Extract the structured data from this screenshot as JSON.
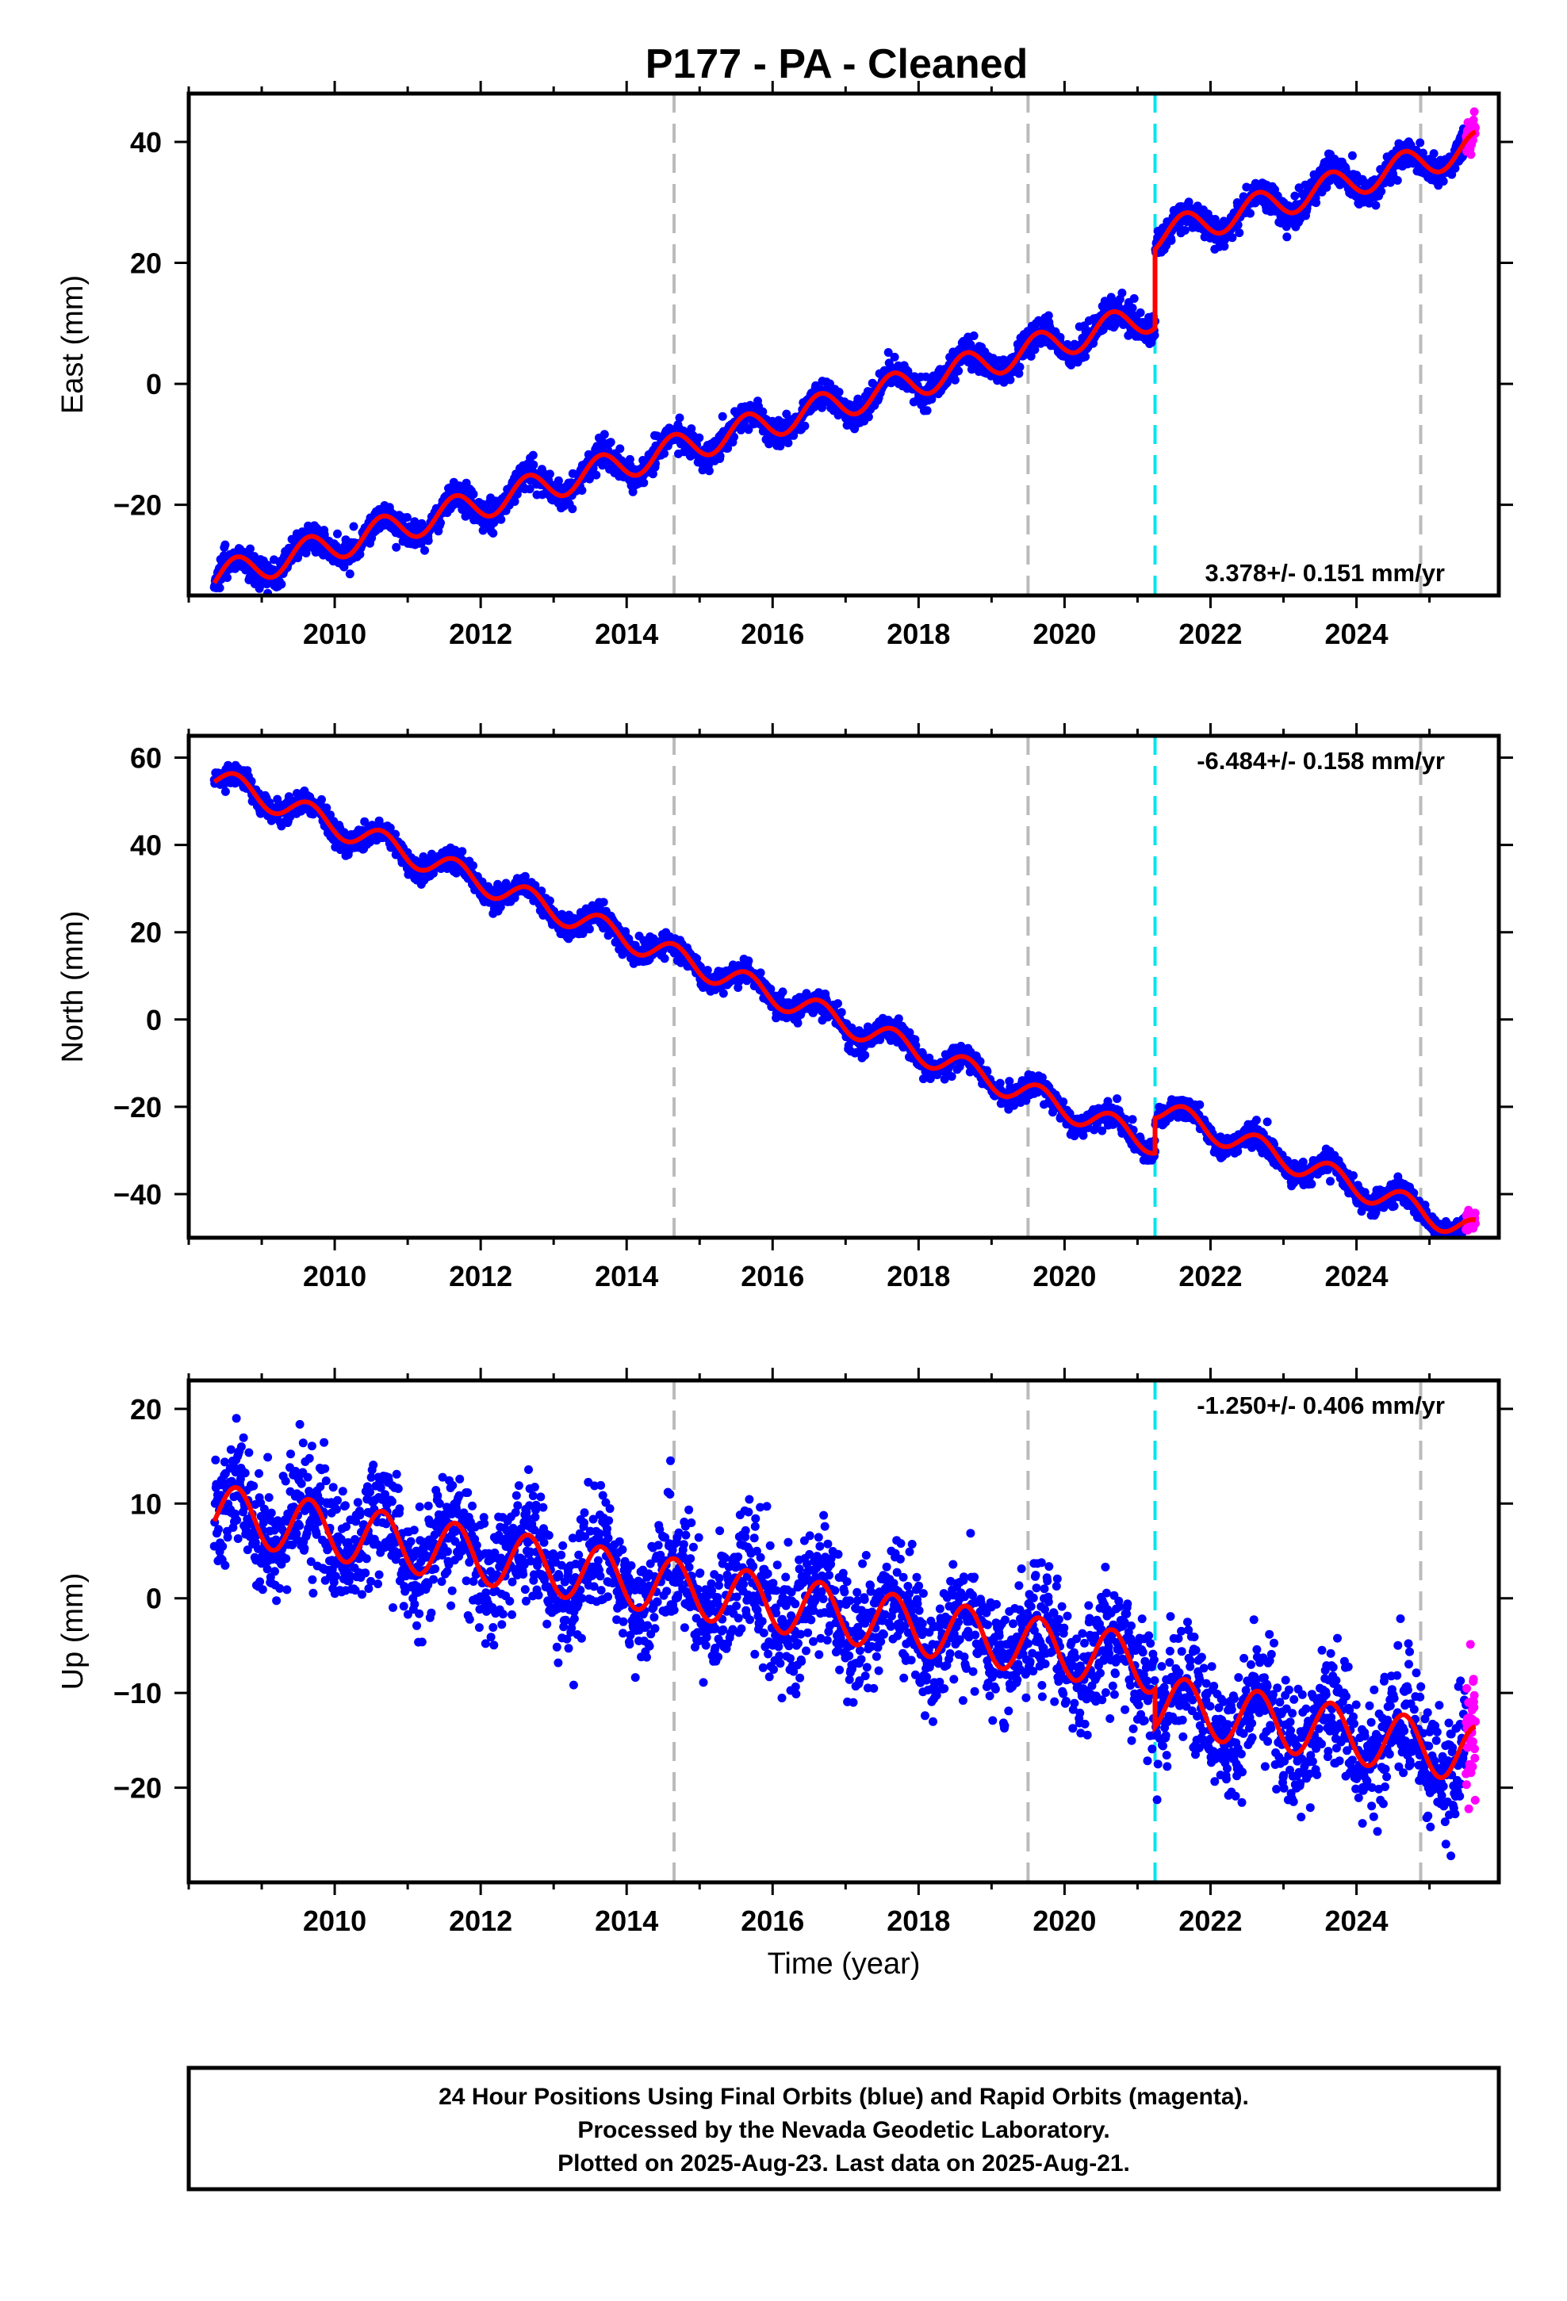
{
  "title": "P177  - PA - Cleaned",
  "footer": {
    "line1": "24 Hour Positions Using Final Orbits (blue) and Rapid Orbits (magenta).",
    "line2": "Processed by the Nevada Geodetic Laboratory.",
    "line3": "Plotted on 2025-Aug-23. Last data on 2025-Aug-21."
  },
  "colors": {
    "final_orbits": "#0000ff",
    "rapid_orbits": "#ff00ff",
    "model_fit": "#ff0000",
    "equipment_change": "#bbbbbb",
    "earthquake": "#00e5ee"
  },
  "chart_data": [
    {
      "type": "scatter",
      "component": "east",
      "ylabel": "East (mm)",
      "xlabel": "",
      "xlim": [
        2008.0,
        2025.95
      ],
      "ylim": [
        -35,
        48
      ],
      "x_ticks": [
        2010,
        2012,
        2014,
        2016,
        2018,
        2020,
        2022,
        2024
      ],
      "y_ticks": [
        -20,
        0,
        20,
        40
      ],
      "rate_label": "3.378+/- 0.151 mm/yr",
      "rate_position": "bottom-right",
      "vertical_lines": [
        {
          "x": 2014.65,
          "kind": "equipment-change",
          "style": "gray-dashed"
        },
        {
          "x": 2019.5,
          "kind": "equipment-change",
          "style": "gray-dashed"
        },
        {
          "x": 2021.24,
          "kind": "earthquake",
          "style": "cyan-dashed"
        },
        {
          "x": 2024.88,
          "kind": "equipment-change",
          "style": "gray-dashed"
        }
      ],
      "model": {
        "t0": 2008.4,
        "v0": -32.0,
        "rate": 3.378,
        "seasonal_amplitude": 2.5,
        "offsets": [
          {
            "x": 2021.24,
            "step": 13.0
          }
        ]
      },
      "series": [
        {
          "orbit": "final",
          "x_range": [
            2008.35,
            2025.5
          ],
          "noise_mm": 1.2,
          "points": 3000
        },
        {
          "orbit": "rapid",
          "x_range": [
            2025.5,
            2025.63
          ],
          "noise_mm": 1.5,
          "points": 35
        }
      ]
    },
    {
      "type": "scatter",
      "component": "north",
      "ylabel": "North (mm)",
      "xlabel": "",
      "xlim": [
        2008.0,
        2025.95
      ],
      "ylim": [
        -50,
        65
      ],
      "x_ticks": [
        2010,
        2012,
        2014,
        2016,
        2018,
        2020,
        2022,
        2024
      ],
      "y_ticks": [
        -40,
        -20,
        0,
        20,
        40,
        60
      ],
      "rate_label": "-6.484+/- 0.158 mm/yr",
      "rate_position": "top-right",
      "vertical_lines": [
        {
          "x": 2014.65,
          "kind": "equipment-change",
          "style": "gray-dashed"
        },
        {
          "x": 2019.5,
          "kind": "equipment-change",
          "style": "gray-dashed"
        },
        {
          "x": 2021.24,
          "kind": "earthquake",
          "style": "cyan-dashed"
        },
        {
          "x": 2024.88,
          "kind": "equipment-change",
          "style": "gray-dashed"
        }
      ],
      "model": {
        "t0": 2008.4,
        "v0": 55.0,
        "rate": -6.484,
        "seasonal_amplitude": 2.8,
        "offsets": [
          {
            "x": 2021.24,
            "step": 8.0
          }
        ]
      },
      "series": [
        {
          "orbit": "final",
          "x_range": [
            2008.35,
            2025.5
          ],
          "noise_mm": 1.3,
          "points": 3000
        },
        {
          "orbit": "rapid",
          "x_range": [
            2025.5,
            2025.63
          ],
          "noise_mm": 1.5,
          "points": 35
        }
      ]
    },
    {
      "type": "scatter",
      "component": "up",
      "ylabel": "Up (mm)",
      "xlabel": "Time (year)",
      "xlim": [
        2008.0,
        2025.95
      ],
      "ylim": [
        -30,
        23
      ],
      "x_ticks": [
        2010,
        2012,
        2014,
        2016,
        2018,
        2020,
        2022,
        2024
      ],
      "y_ticks": [
        -20,
        -10,
        0,
        10,
        20
      ],
      "rate_label": "-1.250+/- 0.406 mm/yr",
      "rate_position": "top-right",
      "vertical_lines": [
        {
          "x": 2014.65,
          "kind": "equipment-change",
          "style": "gray-dashed"
        },
        {
          "x": 2019.5,
          "kind": "equipment-change",
          "style": "gray-dashed"
        },
        {
          "x": 2021.24,
          "kind": "earthquake",
          "style": "cyan-dashed"
        },
        {
          "x": 2024.88,
          "kind": "equipment-change",
          "style": "gray-dashed"
        }
      ],
      "model": {
        "t0": 2008.4,
        "v0": 9.0,
        "rate": -1.25,
        "seasonal_amplitude": 3.0,
        "offsets": [
          {
            "x": 2021.24,
            "step": -4.0
          }
        ]
      },
      "series": [
        {
          "orbit": "final",
          "x_range": [
            2008.35,
            2025.5
          ],
          "noise_mm": 3.2,
          "points": 3000
        },
        {
          "orbit": "rapid",
          "x_range": [
            2025.5,
            2025.63
          ],
          "noise_mm": 4.0,
          "points": 35
        }
      ]
    }
  ]
}
